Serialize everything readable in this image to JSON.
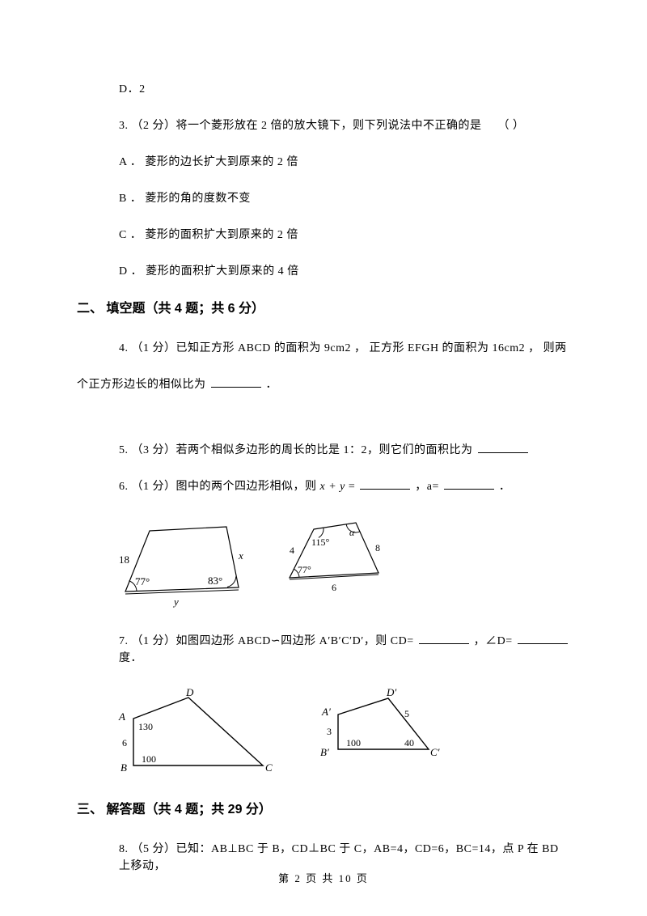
{
  "q2_optD": "D．2",
  "q3": {
    "stem_prefix": "3.  （2 分）将一个菱形放在 2 倍的放大镜下，则下列说法中不正确的是",
    "paren": "（        ）",
    "A": "A ．  菱形的边长扩大到原来的 2 倍",
    "B": "B ．  菱形的角的度数不变",
    "C": "C ．  菱形的面积扩大到原来的 2 倍",
    "D": "D ．  菱形的面积扩大到原来的 4 倍"
  },
  "sec2_heading": "二、  填空题（共 4 题；共 6 分）",
  "q4_a": "4.  （1 分）已知正方形 ABCD 的面积为 9cm2 ，  正方形 EFGH 的面积为 16cm2 ，  则两",
  "q4_b": "个正方形边长的相似比为",
  "q4_b_tail": "．",
  "q5_a": "5.  （3 分）若两个相似多边形的周长的比是 1：2，则它们的面积比为",
  "q6_a": "6.  （1 分）图中的两个四边形相似，则",
  "q6_expr": "x + y",
  "q6_b": "=",
  "q6_c": "，a=",
  "q6_d": "．",
  "q7_a": "7.  （1 分）如图四边形 ABCD∽四边形 A′B′C′D′，则 CD=",
  "q7_b": "，∠D=",
  "q7_c": "度．",
  "sec3_heading": "三、  解答题（共 4 题；共 29 分）",
  "q8_a": "8.  （5 分）已知：AB⊥BC 于 B，CD⊥BC 于 C，AB=4，CD=6，BC=14，点 P 在 BD 上移动，",
  "footer": "第  2  页  共  10  页",
  "fig6": {
    "left": {
      "side_left": "18",
      "side_right": "x",
      "side_bottom": "y",
      "angle_left": "77°",
      "angle_right": "83°",
      "stroke": "#000000",
      "font": "italic 13px 'Times New Roman', serif"
    },
    "right": {
      "side_left": "4",
      "side_right": "8",
      "side_bottom": "6",
      "angle_left": "77°",
      "angle_top": "115°",
      "angle_tr": "α",
      "stroke": "#000000",
      "font": "italic 12px 'Times New Roman', serif"
    }
  },
  "fig7": {
    "left": {
      "A": "A",
      "B": "B",
      "C": "C",
      "D": "D",
      "angA": "130",
      "angB": "100",
      "sideAB": "6",
      "stroke": "#000000",
      "font": "italic 13px 'Times New Roman', serif",
      "font_num": "12px 'Times New Roman', serif"
    },
    "right": {
      "A": "A′",
      "B": "B′",
      "C": "C′",
      "D": "D′",
      "angB": "100",
      "angC": "40",
      "sideAB": "3",
      "sideCD": "5",
      "stroke": "#000000",
      "font": "italic 13px 'Times New Roman', serif",
      "font_num": "12px 'Times New Roman', serif"
    }
  },
  "blank_widths": {
    "short": 62,
    "med": 62
  }
}
